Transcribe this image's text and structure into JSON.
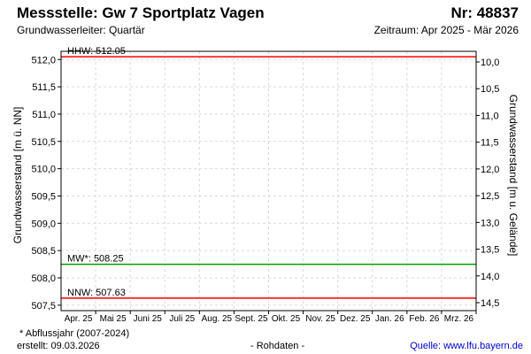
{
  "header": {
    "title": "Messstelle: Gw 7 Sportplatz Vagen",
    "number": "Nr: 48837",
    "aquifer": "Grundwasserleiter: Quartär",
    "period": "Zeitraum: Apr 2025 - Mär 2026"
  },
  "chart_data": {
    "type": "line",
    "title": "Messstelle: Gw 7 Sportplatz Vagen",
    "ylabel": "Grundwasserstand [m ü. NN]",
    "ylabel_right": "Grundwasserstand [m u. Gelände]",
    "ylim": [
      507.4,
      512.15
    ],
    "yticks": [
      512.0,
      511.5,
      511.0,
      510.5,
      510.0,
      509.5,
      509.0,
      508.5,
      508.0,
      507.5
    ],
    "ytick_labels": [
      "512,0",
      "511,5",
      "511,0",
      "510,5",
      "510,0",
      "509,5",
      "509,0",
      "508,5",
      "508,0",
      "507,5"
    ],
    "ylim_right": [
      10.0,
      14.5
    ],
    "yticks_right": [
      10.0,
      10.5,
      11.0,
      11.5,
      12.0,
      12.5,
      13.0,
      13.5,
      14.0,
      14.5
    ],
    "ytick_labels_right": [
      "10,0",
      "10,5",
      "11,0",
      "11,5",
      "12,0",
      "12,5",
      "13,0",
      "13,5",
      "14,0",
      "14,5"
    ],
    "x_labels": [
      "Apr. 25",
      "Mai 25",
      "Juni 25",
      "Juli 25",
      "Aug. 25",
      "Sept. 25",
      "Okt. 25",
      "Nov. 25",
      "Dez. 25",
      "Jan. 26",
      "Feb. 26",
      "Mrz. 26"
    ],
    "grid": true,
    "series": [
      {
        "name": "HHW",
        "label": "HHW: 512.05",
        "value": 512.05,
        "color": "#ff0000"
      },
      {
        "name": "MW*",
        "label": "MW*: 508.25",
        "value": 508.25,
        "color": "#00a000"
      },
      {
        "name": "NNW",
        "label": "NNW: 507.63",
        "value": 507.63,
        "color": "#ff0000"
      }
    ]
  },
  "footer": {
    "note": "* Abflussjahr (2007-2024)",
    "created": "erstellt:  09.03.2026",
    "raw": "- Rohdaten -",
    "source": "Quelle: www.lfu.bayern.de"
  }
}
